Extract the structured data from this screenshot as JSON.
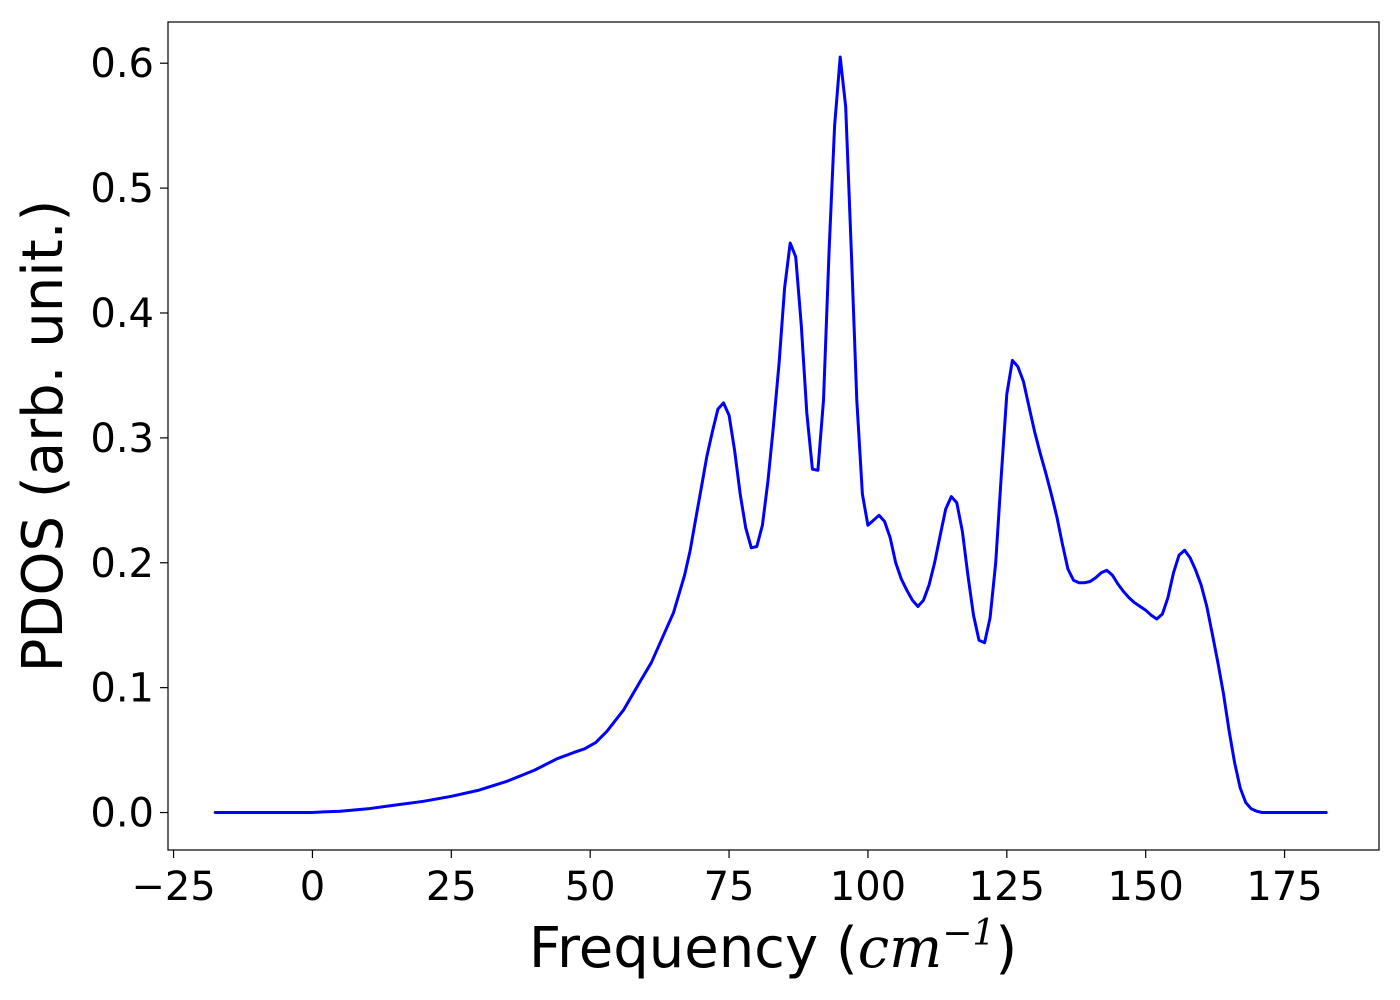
{
  "chart_data": {
    "type": "line",
    "title": "",
    "xlabel": "Frequency",
    "xlabel_unit": "cm",
    "xlabel_unit_exponent": "−1",
    "ylabel": "PDOS (arb. unit.)",
    "xlim": [
      -26,
      192
    ],
    "ylim": [
      -0.03,
      0.633
    ],
    "xticks": [
      -25,
      0,
      25,
      50,
      75,
      100,
      125,
      150,
      175
    ],
    "xtick_labels": [
      "−25",
      "0",
      "25",
      "50",
      "75",
      "100",
      "125",
      "150",
      "175"
    ],
    "yticks": [
      0.0,
      0.1,
      0.2,
      0.3,
      0.4,
      0.5,
      0.6
    ],
    "ytick_labels": [
      "0.0",
      "0.1",
      "0.2",
      "0.3",
      "0.4",
      "0.5",
      "0.6"
    ],
    "grid": false,
    "legend": "none",
    "series": [
      {
        "color": "#0000ff",
        "x": [
          -17.5,
          -5,
          0,
          2,
          5,
          10,
          15,
          20,
          25,
          30,
          35,
          40,
          44,
          47,
          49,
          51,
          53,
          56,
          59,
          61,
          63,
          65,
          67,
          68,
          69,
          70,
          71,
          72,
          73,
          74,
          75,
          76,
          77,
          78,
          79,
          80,
          81,
          82,
          83,
          84,
          85,
          86,
          87,
          88,
          89,
          90,
          91,
          92,
          93,
          94,
          95,
          96,
          97,
          98,
          99,
          100,
          101,
          102,
          103,
          104,
          105,
          106,
          107,
          108,
          109,
          110,
          111,
          112,
          113,
          114,
          115,
          116,
          117,
          118,
          119,
          120,
          121,
          122,
          123,
          124,
          125,
          126,
          127,
          128,
          129,
          130,
          131,
          132,
          133,
          134,
          135,
          136,
          137,
          138,
          139,
          140,
          141,
          142,
          143,
          144,
          145,
          146,
          147,
          148,
          149,
          150,
          151,
          152,
          153,
          154,
          155,
          156,
          157,
          158,
          159,
          160,
          161,
          162,
          163,
          164,
          165,
          166,
          167,
          168,
          169,
          170,
          171,
          172,
          175,
          180,
          182.5
        ],
        "y": [
          0.0,
          0.0,
          0.0,
          0.0005,
          0.001,
          0.003,
          0.006,
          0.009,
          0.013,
          0.018,
          0.025,
          0.034,
          0.043,
          0.048,
          0.051,
          0.056,
          0.065,
          0.082,
          0.105,
          0.12,
          0.14,
          0.16,
          0.19,
          0.21,
          0.235,
          0.26,
          0.285,
          0.305,
          0.323,
          0.328,
          0.318,
          0.29,
          0.255,
          0.228,
          0.212,
          0.213,
          0.23,
          0.265,
          0.31,
          0.36,
          0.42,
          0.456,
          0.445,
          0.39,
          0.32,
          0.275,
          0.274,
          0.33,
          0.45,
          0.55,
          0.605,
          0.565,
          0.45,
          0.33,
          0.255,
          0.23,
          0.234,
          0.238,
          0.233,
          0.22,
          0.2,
          0.187,
          0.178,
          0.17,
          0.165,
          0.17,
          0.182,
          0.2,
          0.222,
          0.243,
          0.253,
          0.248,
          0.225,
          0.19,
          0.158,
          0.138,
          0.136,
          0.156,
          0.2,
          0.27,
          0.335,
          0.362,
          0.357,
          0.345,
          0.325,
          0.305,
          0.288,
          0.272,
          0.255,
          0.237,
          0.215,
          0.195,
          0.186,
          0.184,
          0.184,
          0.185,
          0.188,
          0.192,
          0.194,
          0.19,
          0.183,
          0.177,
          0.172,
          0.168,
          0.165,
          0.162,
          0.158,
          0.155,
          0.159,
          0.172,
          0.192,
          0.206,
          0.21,
          0.204,
          0.194,
          0.182,
          0.165,
          0.143,
          0.12,
          0.095,
          0.066,
          0.04,
          0.02,
          0.008,
          0.003,
          0.001,
          0.0,
          0.0,
          0.0,
          0.0,
          0.0
        ]
      }
    ]
  }
}
